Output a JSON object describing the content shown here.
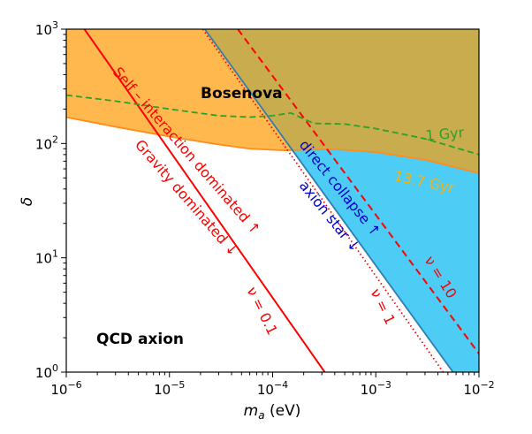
{
  "chart_data": {
    "type": "area",
    "xlabel_base": "m",
    "xlabel_sub": "a",
    "xlabel_unit": " (eV)",
    "ylabel": "δ",
    "x_scale": "log",
    "y_scale": "log",
    "xlim": [
      1e-06,
      0.01
    ],
    "ylim": [
      1,
      1000
    ],
    "x_ticks": [
      {
        "value": 1e-06,
        "base": "10",
        "exp": "−6"
      },
      {
        "value": 1e-05,
        "base": "10",
        "exp": "−5"
      },
      {
        "value": 0.0001,
        "base": "10",
        "exp": "−4"
      },
      {
        "value": 0.001,
        "base": "10",
        "exp": "−3"
      },
      {
        "value": 0.01,
        "base": "10",
        "exp": "−2"
      }
    ],
    "y_ticks": [
      {
        "value": 1,
        "base": "10",
        "exp": "0"
      },
      {
        "value": 10,
        "base": "10",
        "exp": "1"
      },
      {
        "value": 100,
        "base": "10",
        "exp": "2"
      },
      {
        "value": 1000,
        "base": "10",
        "exp": "3"
      }
    ],
    "colors": {
      "bosenova": "#ffb84d",
      "direct_collapse": "#4dccf5",
      "overlap": "#c9ac4e",
      "boundary_orange": "#ff8c1a",
      "boundary_blue": "#2e7fb0",
      "red": "#ff0000",
      "green": "#2ca02c",
      "blue_text": "#0000cc",
      "gold_text": "#ffb000"
    },
    "series": [
      {
        "key": "bosenova_boundary",
        "style": "solid",
        "points": [
          [
            1e-06,
            170
          ],
          [
            3e-06,
            140
          ],
          [
            1e-05,
            115
          ],
          [
            3e-05,
            98
          ],
          [
            6e-05,
            90
          ],
          [
            0.0001,
            88
          ],
          [
            0.00013,
            87
          ],
          [
            0.0002,
            88
          ],
          [
            0.0004,
            89
          ],
          [
            0.001,
            84
          ],
          [
            0.003,
            72
          ],
          [
            0.01,
            55
          ]
        ]
      },
      {
        "key": "direct_collapse_boundary",
        "style": "solid",
        "points": [
          [
            2.2e-05,
            1000
          ],
          [
            0.0056,
            1
          ]
        ]
      },
      {
        "key": "nu_0.1",
        "label": "ν = 0.1",
        "style": "solid",
        "points": [
          [
            1.5e-06,
            1000
          ],
          [
            0.00032,
            1
          ]
        ]
      },
      {
        "key": "nu_1",
        "label": "ν = 1",
        "style": "dotted",
        "points": [
          [
            2.1e-05,
            1000
          ],
          [
            0.0045,
            1
          ]
        ]
      },
      {
        "key": "nu_10",
        "label": "ν = 10",
        "style": "dashed",
        "points": [
          [
            4.6e-05,
            1000
          ],
          [
            0.01,
            1.45
          ]
        ]
      },
      {
        "key": "1gyr",
        "label": "1 Gyr",
        "style": "dashed",
        "points": [
          [
            1e-06,
            265
          ],
          [
            3e-06,
            235
          ],
          [
            1e-05,
            200
          ],
          [
            3e-05,
            175
          ],
          [
            6e-05,
            170
          ],
          [
            0.0001,
            175
          ],
          [
            0.00015,
            185
          ],
          [
            0.00025,
            150
          ],
          [
            0.0005,
            148
          ],
          [
            0.001,
            135
          ],
          [
            0.003,
            110
          ],
          [
            0.01,
            80
          ]
        ]
      }
    ],
    "annotations": {
      "bosenova": "Bosenova",
      "qcd_axion": "QCD axion",
      "one_gyr": "1 Gyr",
      "thirteen_gyr": "13.7 Gyr",
      "self_interaction": "Self – interaction dominated ↑",
      "gravity": "Gravity dominated ↓",
      "direct_collapse": "direct collapse ↑",
      "axion_star": "axion star ↓",
      "nu01": "ν = 0.1",
      "nu1": "ν = 1",
      "nu10": "ν = 10"
    }
  }
}
